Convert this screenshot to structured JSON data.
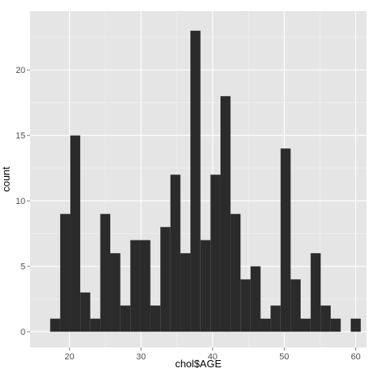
{
  "chart_data": {
    "type": "bar",
    "xlabel": "chol$AGE",
    "ylabel": "count",
    "xlim": [
      14.5,
      61.5
    ],
    "ylim": [
      -1.2,
      24.5
    ],
    "x_ticks": [
      20,
      30,
      40,
      50,
      60
    ],
    "y_ticks": [
      0,
      5,
      10,
      15,
      20
    ],
    "bin_width": 1.4,
    "bins": [
      {
        "x": 18.0,
        "count": 1
      },
      {
        "x": 19.4,
        "count": 9
      },
      {
        "x": 20.8,
        "count": 15
      },
      {
        "x": 22.2,
        "count": 3
      },
      {
        "x": 23.6,
        "count": 1
      },
      {
        "x": 25.0,
        "count": 9
      },
      {
        "x": 26.4,
        "count": 6
      },
      {
        "x": 27.8,
        "count": 2
      },
      {
        "x": 29.2,
        "count": 7
      },
      {
        "x": 30.6,
        "count": 7
      },
      {
        "x": 32.0,
        "count": 2
      },
      {
        "x": 33.4,
        "count": 8
      },
      {
        "x": 34.8,
        "count": 12
      },
      {
        "x": 36.2,
        "count": 6
      },
      {
        "x": 37.6,
        "count": 23
      },
      {
        "x": 39.0,
        "count": 7
      },
      {
        "x": 40.4,
        "count": 12
      },
      {
        "x": 41.8,
        "count": 18
      },
      {
        "x": 43.2,
        "count": 9
      },
      {
        "x": 44.6,
        "count": 4
      },
      {
        "x": 46.0,
        "count": 5
      },
      {
        "x": 47.4,
        "count": 1
      },
      {
        "x": 48.8,
        "count": 2
      },
      {
        "x": 50.2,
        "count": 14
      },
      {
        "x": 51.6,
        "count": 4
      },
      {
        "x": 53.0,
        "count": 1
      },
      {
        "x": 54.4,
        "count": 6
      },
      {
        "x": 55.8,
        "count": 2
      },
      {
        "x": 57.2,
        "count": 1
      },
      {
        "x": 58.6,
        "count": 0
      },
      {
        "x": 60.0,
        "count": 1
      }
    ],
    "grid": true,
    "colors": {
      "panel": "#e5e5e5",
      "grid_major": "#ffffff",
      "grid_minor": "#f2f2f2",
      "bar": "#2b2b2b"
    }
  }
}
